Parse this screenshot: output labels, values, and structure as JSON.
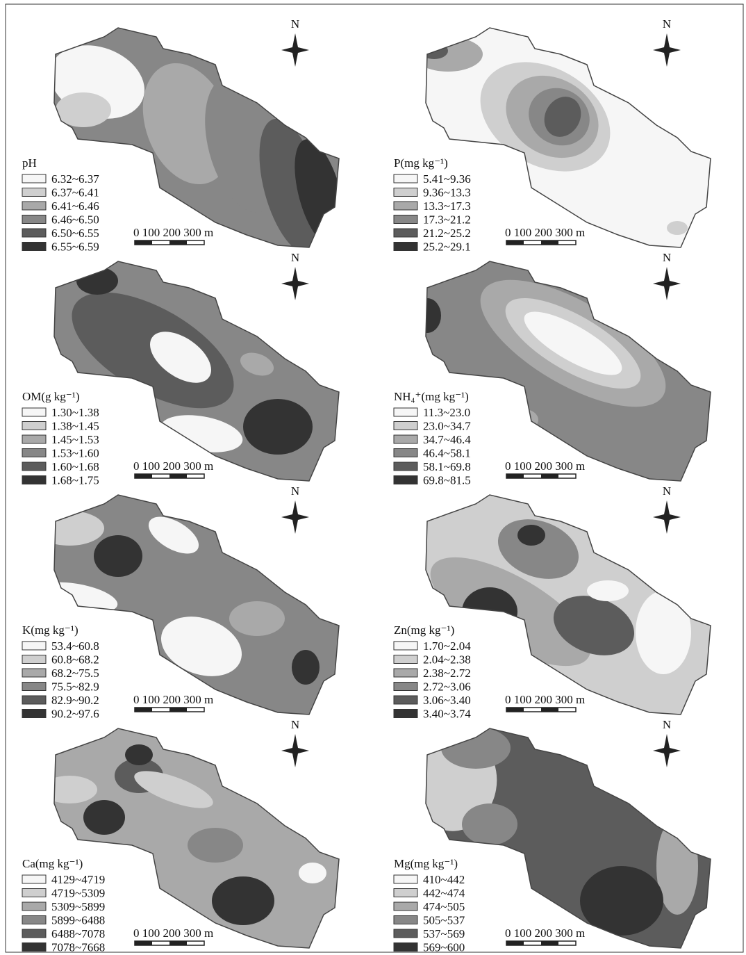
{
  "panels": [
    {
      "title": "pH",
      "legend": [
        "6.32~6.37",
        "6.37~6.41",
        "6.41~6.46",
        "6.46~6.50",
        "6.50~6.55",
        "6.55~6.59"
      ],
      "scale": "0 100 200 300 m",
      "north": "N"
    },
    {
      "title": "P(mg kg⁻¹)",
      "legend": [
        "5.41~9.36",
        "9.36~13.3",
        "13.3~17.3",
        "17.3~21.2",
        "21.2~25.2",
        "25.2~29.1"
      ],
      "scale": "0 100 200 300 m",
      "north": "N"
    },
    {
      "title": "OM(g kg⁻¹)",
      "legend": [
        "1.30~1.38",
        "1.38~1.45",
        "1.45~1.53",
        "1.53~1.60",
        "1.60~1.68",
        "1.68~1.75"
      ],
      "scale": "0 100 200 300 m",
      "north": "N"
    },
    {
      "title": "NH₄⁺(mg kg⁻¹)",
      "legend": [
        "11.3~23.0",
        "23.0~34.7",
        "34.7~46.4",
        "46.4~58.1",
        "58.1~69.8",
        "69.8~81.5"
      ],
      "scale": "0 100 200 300 m",
      "north": "N"
    },
    {
      "title": "K(mg kg⁻¹)",
      "legend": [
        "53.4~60.8",
        "60.8~68.2",
        "68.2~75.5",
        "75.5~82.9",
        "82.9~90.2",
        "90.2~97.6"
      ],
      "scale": "0 100 200 300 m",
      "north": "N"
    },
    {
      "title": "Zn(mg kg⁻¹)",
      "legend": [
        "1.70~2.04",
        "2.04~2.38",
        "2.38~2.72",
        "2.72~3.06",
        "3.06~3.40",
        "3.40~3.74"
      ],
      "scale": "0 100 200 300 m",
      "north": "N"
    },
    {
      "title": "Ca(mg kg⁻¹)",
      "legend": [
        "4129~4719",
        "4719~5309",
        "5309~5899",
        "5899~6488",
        "6488~7078",
        "7078~7668"
      ],
      "scale": "0 100 200 300 m",
      "north": "N"
    },
    {
      "title": "Mg(mg kg⁻¹)",
      "legend": [
        "410~442",
        "442~474",
        "474~505",
        "505~537",
        "537~569",
        "569~600"
      ],
      "scale": "0 100 200 300 m",
      "north": "N"
    }
  ]
}
